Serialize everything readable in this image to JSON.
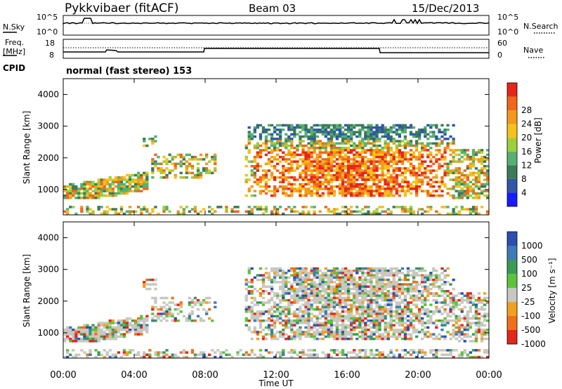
{
  "header": {
    "station": "Pykkvibaer (fitACF)",
    "beam": "Beam 03",
    "date": "15/Dec/2013"
  },
  "noise_panel": {
    "left_label": "N.Sky",
    "right_label": "N.Search",
    "left_ticks": [
      "10^5",
      "10^0"
    ],
    "right_ticks": [
      "10^5",
      "10^0"
    ]
  },
  "freq_panel": {
    "left_label_1": "Freq.",
    "left_label_2": "[MHz]",
    "right_label": "Nave",
    "left_ticks": [
      "18",
      "8"
    ],
    "right_ticks": [
      "60",
      "0"
    ]
  },
  "cpid": {
    "label": "CPID",
    "value": "normal (fast stereo) 153"
  },
  "chart_data": [
    {
      "type": "heatmap",
      "title": "",
      "ylabel": "Slant Range [km]",
      "xlabel": "",
      "ylim": [
        200,
        4500
      ],
      "yticks": [
        "1000",
        "2000",
        "3000",
        "4000"
      ],
      "xticks": [
        "00:00",
        "04:00",
        "08:00",
        "12:00",
        "16:00",
        "20:00",
        "00:00"
      ],
      "colorbar": {
        "label": "Power [dB]",
        "ticks": [
          "4",
          "8",
          "12",
          "16",
          "20",
          "24",
          "28"
        ],
        "colors": [
          "#1a1aff",
          "#2f56a8",
          "#3b7a5a",
          "#56b070",
          "#9ccf3a",
          "#f5c21a",
          "#f39a1a",
          "#f0661a",
          "#e5261a"
        ]
      }
    },
    {
      "type": "heatmap",
      "title": "",
      "ylabel": "Slant Range [km]",
      "xlabel": "Time UT",
      "ylim": [
        200,
        4500
      ],
      "yticks": [
        "1000",
        "2000",
        "3000",
        "4000"
      ],
      "xticks": [
        "00:00",
        "04:00",
        "08:00",
        "12:00",
        "16:00",
        "20:00",
        "00:00"
      ],
      "colorbar": {
        "label": "Velocity [m s⁻¹]",
        "ticks": [
          "1000",
          "500",
          "100",
          "25",
          "-25",
          "-100",
          "-500",
          "-1000"
        ],
        "colors": [
          "#2a4fb0",
          "#3e7ab8",
          "#3a9a55",
          "#5cc43a",
          "#c8c8c0",
          "#f2a020",
          "#f0701a",
          "#e5261a"
        ]
      }
    }
  ]
}
